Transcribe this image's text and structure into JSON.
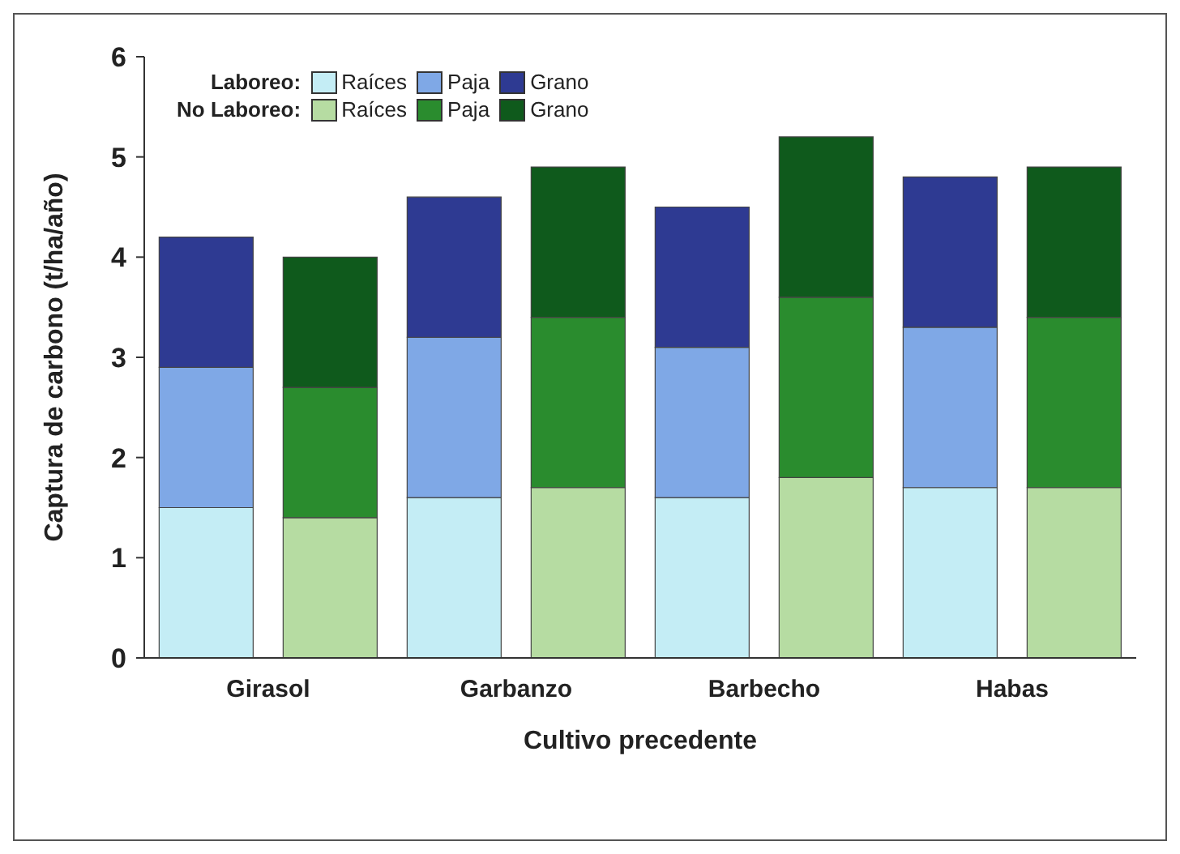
{
  "chart_data": {
    "type": "bar",
    "stacked": true,
    "xlabel": "Cultivo precedente",
    "ylabel": "Captura de carbono (t/ha/año)",
    "categories": [
      "Girasol",
      null,
      "Garbanzo",
      null,
      "Barbecho",
      null,
      "Habas",
      null
    ],
    "annotations": [
      "Laboreo:",
      "No Laboreo:"
    ],
    "series": [
      {
        "name": "Raíces",
        "color": "#c4edf5",
        "values": [
          1.5,
          null,
          1.6,
          null,
          1.6,
          null,
          1.7,
          null
        ]
      },
      {
        "name": "Paja",
        "color": "#7fa8e6",
        "values": [
          1.4,
          null,
          1.6,
          null,
          1.5,
          null,
          1.6,
          null
        ]
      },
      {
        "name": "Grano",
        "color": "#2e3a92",
        "values": [
          1.3,
          null,
          1.4,
          null,
          1.4,
          null,
          1.5,
          null
        ]
      },
      {
        "name": "Raíces",
        "color": "#b6dca2",
        "values": [
          null,
          1.4,
          null,
          1.7,
          null,
          1.8,
          null,
          1.7
        ]
      },
      {
        "name": "Paja",
        "color": "#2a8c2e",
        "values": [
          null,
          1.3,
          null,
          1.7,
          null,
          1.8,
          null,
          1.7
        ]
      },
      {
        "name": "Grano",
        "color": "#0f5a1c",
        "values": [
          null,
          1.3,
          null,
          1.5,
          null,
          1.6,
          null,
          1.5
        ]
      }
    ],
    "ylim": [
      0,
      6
    ],
    "yticks": [
      0,
      1,
      2,
      3,
      4,
      5,
      6
    ],
    "grid": false,
    "legend": "top left"
  }
}
